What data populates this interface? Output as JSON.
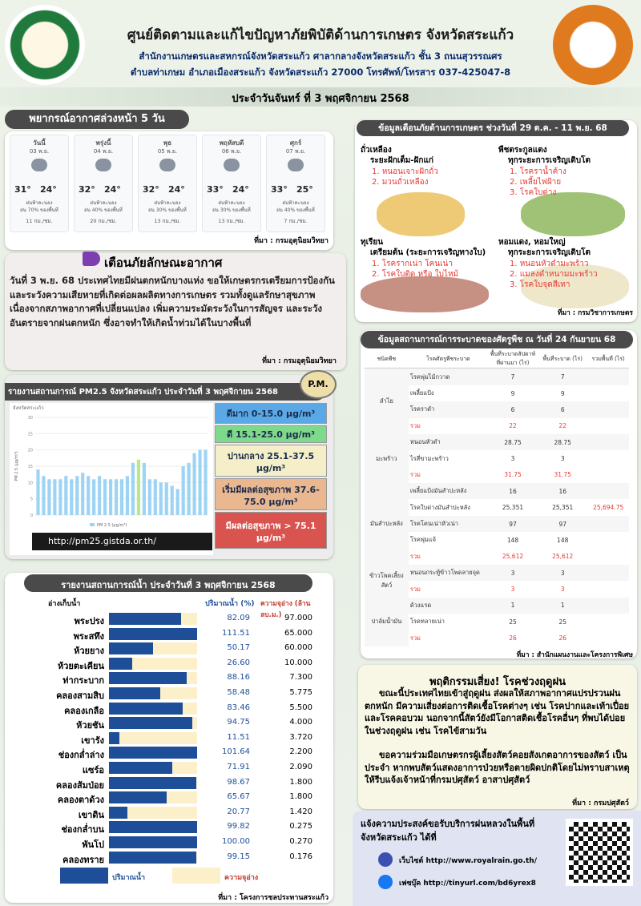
{
  "header": {
    "title": "ศูนย์ติดตามและแก้ไขปัญหาภัยพิบัติด้านการเกษตร จังหวัดสระแก้ว",
    "line1": "สำนักงานเกษตรและสหกรณ์จังหวัดสระแก้ว ศาลากลางจังหวัดสระแก้ว ชั้น 3 ถนนสุวรรณศร",
    "line2": "ตำบลท่าเกษม อำเภอเมืองสระแก้ว จังหวัดสระแก้ว 27000 โทรศัพท์/โทรสาร 037-425047-8",
    "date": "ประจำวันจันทร์ ที่ 3 พฤศจิกายน 2568"
  },
  "forecast": {
    "title": "พยากรณ์อากาศล่วงหน้า 5 วัน",
    "days": [
      {
        "day": "วันนี้",
        "date": "03 พ.ย.",
        "max": "31°",
        "min": "24°",
        "desc": "ฝนฟ้าคะนอง",
        "rain": "ฝน 70% ของพื้นที่",
        "wind": "11 กม./ชม."
      },
      {
        "day": "พรุ่งนี้",
        "date": "04 พ.ย.",
        "max": "32°",
        "min": "24°",
        "desc": "ฝนฟ้าคะนอง",
        "rain": "ฝน 40% ของพื้นที่",
        "wind": "20 กม./ชม."
      },
      {
        "day": "พุธ",
        "date": "05 พ.ย.",
        "max": "32°",
        "min": "24°",
        "desc": "ฝนฟ้าคะนอง",
        "rain": "ฝน 30% ของพื้นที่",
        "wind": "13 กม./ชม."
      },
      {
        "day": "พฤหัสบดี",
        "date": "06 พ.ย.",
        "max": "33°",
        "min": "24°",
        "desc": "ฝนฟ้าคะนอง",
        "rain": "ฝน 30% ของพื้นที่",
        "wind": "13 กม./ชม."
      },
      {
        "day": "ศุกร์",
        "date": "07 พ.ย.",
        "max": "33°",
        "min": "25°",
        "desc": "ฝนฟ้าคะนอง",
        "rain": "ฝน 40% ของพื้นที่",
        "wind": "7 กม./ชม."
      }
    ],
    "source": "ที่มา : กรมอุตุนิยมวิทยา"
  },
  "warning": {
    "title": "เตือนภัยลักษณะอากาศ",
    "text": "วันที่ 3 พ.ย. 68 ประเทศไทยมีฝนตกหนักบางแห่ง ขอให้เกษตรกรเตรียมการป้องกันและระวังความเสียหายที่เกิดต่อผลผลิตทางการเกษตร รวมทั้งดูแลรักษาสุขภาพเนื่องจากสภาพอากาศที่เปลี่ยนแปลง เพิ่มความระมัดระวังในการสัญจร และระวังอันตรายจากฝนตกหนัก ซึ่งอาจทำให้เกิดน้ำท่วมได้ในบางพื้นที่",
    "source": "ที่มา : กรมอุตุนิยมวิทยา"
  },
  "pm25": {
    "title": "รายงานสถานการณ์ PM2.5 จังหวัดสระแก้ว ประจำวันที่ 3 พฤศจิกายน 2568",
    "badge": "P.M.",
    "chart_data": {
      "type": "bar",
      "subtitle": "จังหวัดสระแก้ว",
      "y_label": "PM 2.5 (µg/m³)",
      "ylim": [
        0,
        30
      ],
      "yticks": [
        0,
        5,
        10,
        15,
        20,
        25,
        30
      ],
      "series": [
        {
          "name": "PM 2.5 (µg/m³)",
          "color": "#9dd3f5",
          "values": [
            14,
            12,
            11,
            11,
            11,
            12,
            11,
            12,
            13,
            12,
            11,
            12,
            11,
            11,
            11,
            11,
            12,
            16,
            17,
            16,
            11,
            11,
            10,
            10,
            9,
            8,
            15,
            16,
            19,
            20,
            20
          ]
        }
      ],
      "highlight": [
        {
          "index": 18,
          "color": "#b8e986"
        }
      ]
    },
    "levels": [
      {
        "label": "ดีมาก 0-15.0 µg/m³",
        "color": "#5aa9e6"
      },
      {
        "label": "ดี 15.1-25.0 µg/m³",
        "color": "#7fd98b"
      },
      {
        "label": "ปานกลาง 25.1-37.5 µg/m³",
        "color": "#f4efc9"
      },
      {
        "label": "เริ่มมีผลต่อสุขภาพ 37.6-75.0 µg/m³",
        "color": "#e9b790"
      },
      {
        "label": "มีผลต่อสุขภาพ > 75.1 µg/m³",
        "color": "#d9534f"
      }
    ],
    "url": "http://pm25.gistda.or.th/"
  },
  "water": {
    "title": "รายงานสถานการณ์น้ำ ประจำวันที่ 3 พฤศจิกายน 2568",
    "headers": [
      "อ่างเก็บน้ำ",
      "ปริมาณน้ำ (%)",
      "ความจุอ่าง (ล้าน ลบ.ม.)"
    ],
    "scale_max": 100,
    "bar_color": "#1f4e99",
    "track_color": "#fbf0c9",
    "reservoirs": [
      {
        "name": "พระปรง",
        "pct": 82.09,
        "cap": "97.000"
      },
      {
        "name": "พระสทึง",
        "pct": 111.51,
        "cap": "65.000"
      },
      {
        "name": "ห้วยยาง",
        "pct": 50.17,
        "cap": "60.000"
      },
      {
        "name": "ห้วยตะเคียน",
        "pct": {
          "value": 26.6,
          "label": "26.60"
        },
        "cap": "10.000"
      },
      {
        "name": "ท่ากระบาก",
        "pct": 88.16,
        "cap": "7.300"
      },
      {
        "name": "คลองสามสิบ",
        "pct": 58.48,
        "cap": "5.775"
      },
      {
        "name": "คลองเกลือ",
        "pct": 83.46,
        "cap": "5.500"
      },
      {
        "name": "ห้วยชัน",
        "pct": 94.75,
        "cap": "4.000"
      },
      {
        "name": "เขารัง",
        "pct": 11.51,
        "cap": "3.720"
      },
      {
        "name": "ช่องกล่ำล่าง",
        "pct": 101.64,
        "cap": "2.200"
      },
      {
        "name": "แซร์อ",
        "pct": 71.91,
        "cap": "2.090"
      },
      {
        "name": "คลองส้มป่อย",
        "pct": 98.67,
        "cap": "1.800"
      },
      {
        "name": "คลองตาด้วง",
        "pct": 65.67,
        "cap": "1.800"
      },
      {
        "name": "เขาดิน",
        "pct": 20.77,
        "cap": "1.420"
      },
      {
        "name": "ช่องกล่ำบน",
        "pct": 99.82,
        "cap": "0.275"
      },
      {
        "name": "พันโป",
        "pct": {
          "value": 100,
          "label": "100.00"
        },
        "cap": "0.270"
      },
      {
        "name": "คลองทราย",
        "pct": 99.15,
        "cap": "0.176"
      }
    ],
    "legend": [
      "ปริมาณน้ำ",
      "ความจุอ่าง"
    ],
    "source": "ที่มา : โครงการชลประทานสระแก้ว"
  },
  "disaster": {
    "title": "ข้อมูลเตือนภัยด้านการเกษตร ช่วงวันที่ 29 ต.ค. - 11 พ.ย. 68",
    "items": [
      {
        "crop": "ถั่วเหลือง",
        "stage": "ระยะฝักเต็ม-ฝักแก่",
        "threats": [
          "1. หนอนเจาะฝักถั่ว",
          "2. มวนถั่วเหลือง"
        ]
      },
      {
        "crop": "พืชตระกูลแตง",
        "stage": "ทุกระยะการเจริญเติบโต",
        "threats": [
          "1. โรคราน้ำค้าง",
          "2. เพลี้ยไฟฝ้าย",
          "3. โรคใบด่าง"
        ]
      },
      {
        "crop": "ทุเรียน",
        "stage": "เตรียมต้น (ระยะการเจริญทางใบ)",
        "threats": [
          "1. โรครากเน่า โคนเน่า",
          "2. โรคใบติด หรือ ใบไหม้"
        ]
      },
      {
        "crop": "หอมแดง, หอมใหญ่",
        "stage": "ทุกระยะการเจริญเติบโต",
        "threats": [
          "1. หนอนหัวดำมะพร้าว",
          "2. แมลงดำหนามมะพร้าว",
          "3. โรคใบจุดสีเทา"
        ]
      }
    ],
    "source": "ที่มา : กรมวิชาการเกษตร"
  },
  "pests": {
    "title": "ข้อมูลสถานการณ์การระบาดของศัตรูพืช ณ วันที่ 24 กันยายน 68",
    "headers": [
      "ชนิดพืช",
      "โรคศัตรูพืชระบาด",
      "พื้นที่ระบาดสัปดาห์ที่ผ่านมา (ไร่)",
      "พื้นที่ระบาด (ไร่)",
      "รวมพื้นที่ (ไร่)"
    ],
    "total_label": "รวม",
    "crops": [
      {
        "crop": "ลำไย",
        "rows": [
          [
            "โรคพุ่มไม้กวาด",
            "7",
            "7"
          ],
          [
            "เพลี้ยแป้ง",
            "9",
            "9"
          ],
          [
            "โรคราดำ",
            "6",
            "6"
          ]
        ],
        "total": [
          "22",
          "22"
        ]
      },
      {
        "crop": "มะพร้าว",
        "rows": [
          [
            "หนอนหัวดำ",
            "28.75",
            "28.75"
          ],
          [
            "ไรสี่ขามะพร้าว",
            "3",
            "3"
          ]
        ],
        "total": [
          "31.75",
          "31.75"
        ]
      },
      {
        "crop": "มันสำปะหลัง",
        "rows": [
          [
            "เพลี้ยแป้งมันสำปะหลัง",
            "16",
            "16"
          ],
          [
            "โรคใบด่างมันสำปะหลัง",
            "25,351",
            "25,351"
          ],
          [
            "โรคโคนเน่าหัวเน่า",
            "97",
            "97"
          ],
          [
            "โรคพุ่มแจ้",
            "148",
            "148"
          ]
        ],
        "total": [
          "25,612",
          "25,612"
        ]
      },
      {
        "crop": "ข้าวโพดเลี้ยงสัตว์",
        "rows": [
          [
            "หนอนกระทู้ข้าวโพดลายจุด",
            "3",
            "3"
          ]
        ],
        "total": [
          "3",
          "3"
        ]
      },
      {
        "crop": "ปาล์มน้ำมัน",
        "rows": [
          [
            "ด้วงแรด",
            "1",
            "1"
          ],
          [
            "โรคทลายเน่า",
            "25",
            "25"
          ]
        ],
        "total": [
          "26",
          "26"
        ]
      }
    ],
    "grand_total": "25,694.75",
    "source": "ที่มา : สำนักแผนงานและโครงการพิเศษ"
  },
  "livestock": {
    "title": "พฤติกรรมเสี่ยง! โรคช่วงฤดูฝน",
    "paragraphs": [
      "ขณะนี้ประเทศไทยเข้าสู่ฤดูฝน ส่งผลให้สภาพอากาศแปรปรวนฝนตกหนัก มีความเสี่ยงต่อการติดเชื้อโรคต่างๆ เช่น โรคปากและเท้าเปื่อย และโรคคอบวม นอกจากนี้สัตว์ยังมีโอกาสติดเชื้อโรคอื่นๆ ที่พบได้บ่อยในช่วงฤดูฝน เช่น โรคไข้สามวัน",
      "ขอความร่วมมือเกษตรกรผู้เลี้ยงสัตว์คอยสังเกตอาการของสัตว์ เป็นประจำ หากพบสัตว์แสดงอาการป่วยหรือตายผิดปกติโดยไม่ทราบสาเหตุให้รีบแจ้งเจ้าหน้าที่กรมปศุสัตว์ อาสาปศุสัตว์"
    ],
    "source": "ที่มา : กรมปศุสัตว์"
  },
  "rainmaking": {
    "title": "แจ้งความประสงค์ขอรับบริการฝนหลวงในพื้นที่จังหวัดสระแก้ว ได้ที่",
    "website": "เว็บไซต์ http://www.royalrain.go.th/",
    "facebook": "เฟซบุ๊ค http://tinyurl.com/bd6yrex8"
  }
}
